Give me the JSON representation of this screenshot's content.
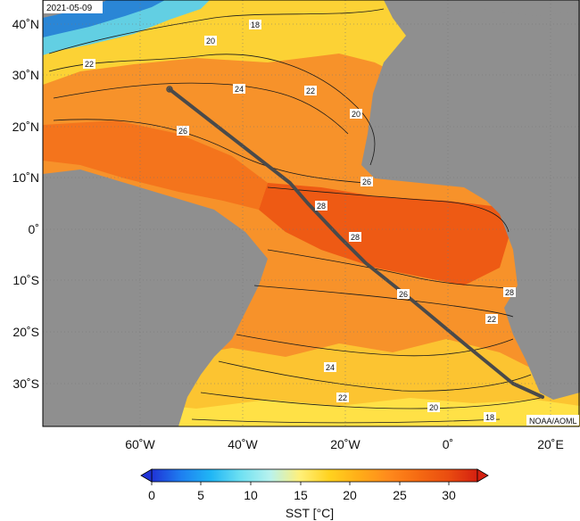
{
  "date": "2021-05-09",
  "credit": "NOAA/AOML",
  "lat_labels": [
    "40˚N",
    "30˚N",
    "20˚N",
    "10˚N",
    "0˚",
    "10˚S",
    "20˚S",
    "30˚S"
  ],
  "lon_labels": [
    "60˚W",
    "40˚W",
    "20˚W",
    "0˚",
    "20˚E"
  ],
  "colorbar": {
    "ticks": [
      "0",
      "5",
      "10",
      "15",
      "20",
      "25",
      "30"
    ],
    "label": "SST [°C]",
    "colors": [
      "#1f33d6",
      "#1e7ff0",
      "#20b6f5",
      "#6ee0f2",
      "#b8f2ee",
      "#fff07a",
      "#ffd21f",
      "#ffad18",
      "#ff8a1c",
      "#f56a12",
      "#ea4d10",
      "#d42010"
    ]
  },
  "contour_labels": [
    "20",
    "18",
    "22",
    "24",
    "22",
    "20",
    "26",
    "26",
    "28",
    "28",
    "26",
    "28",
    "22",
    "24",
    "22",
    "20",
    "18"
  ],
  "colors": {
    "land": "#8f8f8f",
    "track": "#4a4a4a",
    "sst_26_28": "#f26a1c",
    "sst_24_26": "#f78a25",
    "sst_22_24": "#f9a52c",
    "sst_20_22": "#fcc431",
    "sst_18_20": "#ffde2c",
    "sst_cold": "#6ed6e8"
  }
}
